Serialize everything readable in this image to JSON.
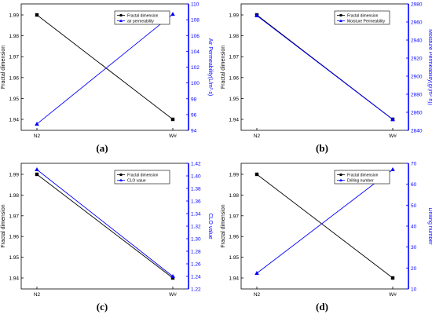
{
  "colors": {
    "series1": "#000000",
    "series2": "#0000ff",
    "axis_right": "#0000ff"
  },
  "chart_data": [
    {
      "id": "a",
      "type": "line",
      "caption": "(a)",
      "categories": [
        "N2",
        "W#"
      ],
      "ylabel": "Fractal dimension",
      "y2label": "Air Permeability(L/m²·s)",
      "ylim": [
        1.94,
        1.99
      ],
      "y2lim": [
        94,
        110
      ],
      "yticks": [
        1.94,
        1.95,
        1.96,
        1.97,
        1.98,
        1.99
      ],
      "y2ticks": [
        94,
        96,
        98,
        100,
        102,
        104,
        106,
        108,
        110
      ],
      "grid": false,
      "legend_position": "top-right",
      "series": [
        {
          "name": "Fractal dimension",
          "axis": "left",
          "marker": "square",
          "values": [
            1.99,
            1.94
          ]
        },
        {
          "name": "air permeability",
          "axis": "right",
          "marker": "triangle",
          "values": [
            94.8,
            108.7
          ]
        }
      ]
    },
    {
      "id": "b",
      "type": "line",
      "caption": "(b)",
      "categories": [
        "N2",
        "W#"
      ],
      "ylabel": "Fractal dimension",
      "y2label": "Moisture Permeability(g/(m²·h))",
      "ylim": [
        1.94,
        1.99
      ],
      "y2lim": [
        2840,
        2980
      ],
      "yticks": [
        1.94,
        1.95,
        1.96,
        1.97,
        1.98,
        1.99
      ],
      "y2ticks": [
        2840,
        2860,
        2880,
        2900,
        2920,
        2940,
        2960,
        2980
      ],
      "grid": false,
      "legend_position": "top-right",
      "series": [
        {
          "name": "Fractal dimension",
          "axis": "left",
          "marker": "square",
          "values": [
            1.99,
            1.94
          ]
        },
        {
          "name": "Moisture Permeability",
          "axis": "right",
          "marker": "triangle",
          "values": [
            2967,
            2852
          ]
        }
      ]
    },
    {
      "id": "c",
      "type": "line",
      "caption": "(c)",
      "categories": [
        "N2",
        "W#"
      ],
      "ylabel": "Fractal dimension",
      "y2label": "CLO value",
      "ylim": [
        1.94,
        1.99
      ],
      "y2lim": [
        1.22,
        1.42
      ],
      "yticks": [
        1.94,
        1.95,
        1.96,
        1.97,
        1.98,
        1.99
      ],
      "y2ticks": [
        1.22,
        1.24,
        1.26,
        1.28,
        1.3,
        1.32,
        1.34,
        1.36,
        1.38,
        1.4,
        1.42
      ],
      "y2decimals": 2,
      "grid": false,
      "legend_position": "top-right",
      "series": [
        {
          "name": "Fractal dimension",
          "axis": "left",
          "marker": "square",
          "values": [
            1.99,
            1.94
          ]
        },
        {
          "name": "CLO value",
          "axis": "right",
          "marker": "triangle",
          "values": [
            1.41,
            1.24
          ]
        }
      ]
    },
    {
      "id": "d",
      "type": "line",
      "caption": "(d)",
      "categories": [
        "N2",
        "W#"
      ],
      "ylabel": "Fractal dimension",
      "y2label": "Drilling number",
      "ylim": [
        1.94,
        1.99
      ],
      "y2lim": [
        10,
        70
      ],
      "yticks": [
        1.94,
        1.95,
        1.96,
        1.97,
        1.98,
        1.99
      ],
      "y2ticks": [
        10,
        20,
        30,
        40,
        50,
        60,
        70
      ],
      "grid": false,
      "legend_position": "top-right",
      "series": [
        {
          "name": "Fractal dimension",
          "axis": "left",
          "marker": "square",
          "values": [
            1.99,
            1.94
          ]
        },
        {
          "name": "Drilling number",
          "axis": "right",
          "marker": "triangle",
          "values": [
            17.5,
            67
          ]
        }
      ]
    }
  ]
}
